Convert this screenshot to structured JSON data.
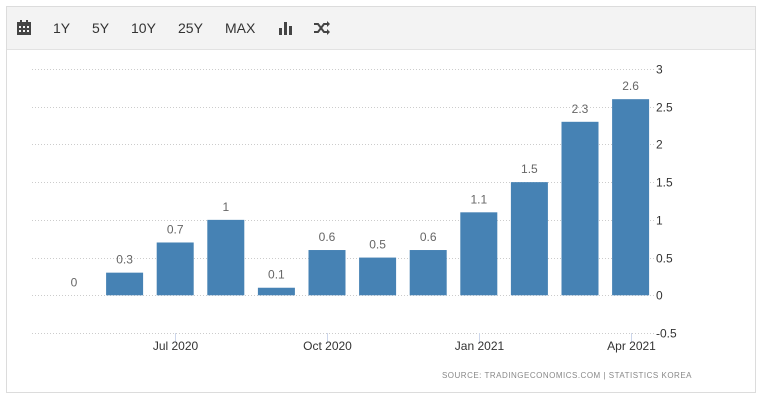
{
  "toolbar": {
    "icons": [
      "calendar-icon",
      "bar-chart-icon",
      "shuffle-icon"
    ],
    "ranges": [
      "1Y",
      "5Y",
      "10Y",
      "25Y",
      "MAX"
    ]
  },
  "source": "SOURCE:  TRADINGECONOMICS.COM  |  STATISTICS KOREA",
  "colors": {
    "bar": "#4682b4",
    "grid": "#cccccc",
    "label": "#666666",
    "axis": "#333333"
  },
  "chart_data": {
    "type": "bar",
    "categories": [
      "2020-05",
      "2020-06",
      "2020-07",
      "2020-08",
      "2020-09",
      "2020-10",
      "2020-11",
      "2020-12",
      "2021-01",
      "2021-02",
      "2021-03",
      "2021-04"
    ],
    "values": [
      0,
      0.3,
      0.7,
      1,
      0.1,
      0.6,
      0.5,
      0.6,
      1.1,
      1.5,
      2.3,
      2.6
    ],
    "data_labels": [
      "0",
      "0.3",
      "0.7",
      "1",
      "0.1",
      "0.6",
      "0.5",
      "0.6",
      "1.1",
      "1.5",
      "2.3",
      "2.6"
    ],
    "x_tick_labels": [
      "Jul 2020",
      "Oct 2020",
      "Jan 2021",
      "Apr 2021"
    ],
    "x_tick_categories": [
      "2020-07",
      "2020-10",
      "2021-01",
      "2021-04"
    ],
    "y_ticks": [
      3,
      2.5,
      2,
      1.5,
      1,
      0.5,
      0,
      -0.5
    ],
    "y_tick_labels": [
      "3",
      "2.5",
      "2",
      "1.5",
      "1",
      "0.5",
      "0",
      "-0.5"
    ],
    "ylim": [
      -0.5,
      3
    ],
    "y_axis_position": "right",
    "grid": true,
    "title": "",
    "xlabel": "",
    "ylabel": ""
  }
}
